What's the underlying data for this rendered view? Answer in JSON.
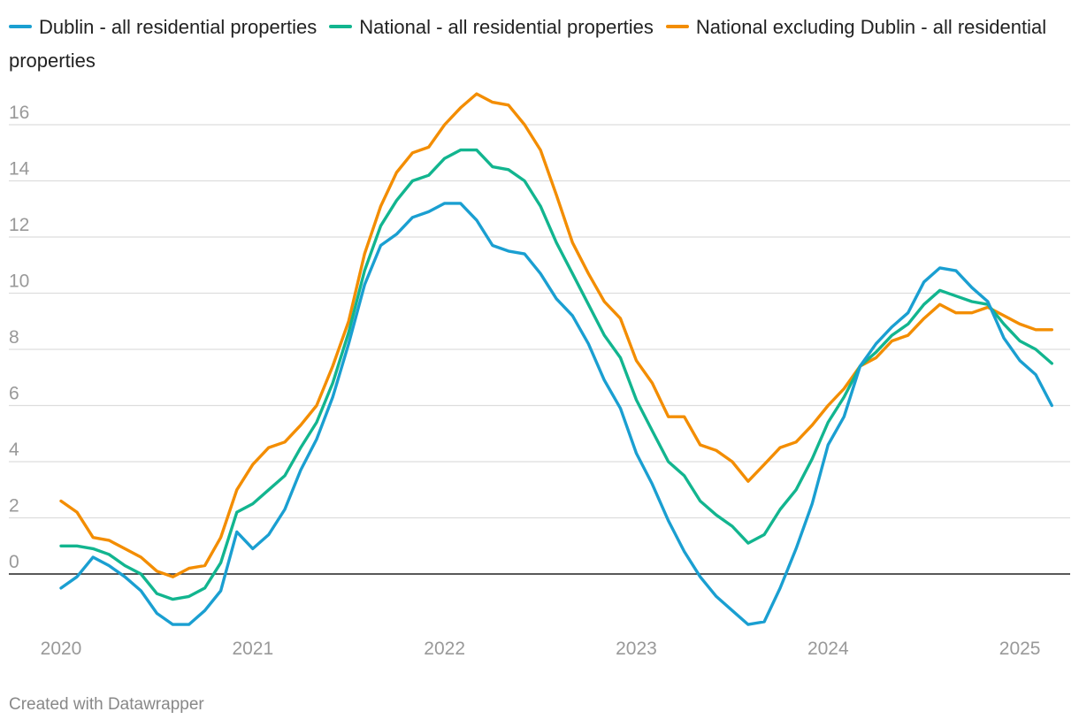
{
  "chart_data": {
    "type": "line",
    "title": "",
    "xlabel": "",
    "ylabel": "",
    "ylim": [
      -1.8,
      17.2
    ],
    "y_ticks": [
      0,
      2,
      4,
      6,
      8,
      10,
      12,
      14,
      16
    ],
    "x_ticks": [
      2020,
      2021,
      2022,
      2023,
      2024,
      2025
    ],
    "x_range": [
      2020,
      2025.17
    ],
    "grid": true,
    "legend_position": "top",
    "x": [
      2020.0,
      2020.083,
      2020.167,
      2020.25,
      2020.333,
      2020.417,
      2020.5,
      2020.583,
      2020.667,
      2020.75,
      2020.833,
      2020.917,
      2021.0,
      2021.083,
      2021.167,
      2021.25,
      2021.333,
      2021.417,
      2021.5,
      2021.583,
      2021.667,
      2021.75,
      2021.833,
      2021.917,
      2022.0,
      2022.083,
      2022.167,
      2022.25,
      2022.333,
      2022.417,
      2022.5,
      2022.583,
      2022.667,
      2022.75,
      2022.833,
      2022.917,
      2023.0,
      2023.083,
      2023.167,
      2023.25,
      2023.333,
      2023.417,
      2023.5,
      2023.583,
      2023.667,
      2023.75,
      2023.833,
      2023.917,
      2024.0,
      2024.083,
      2024.167,
      2024.25,
      2024.333,
      2024.417,
      2024.5,
      2024.583,
      2024.667,
      2024.75,
      2024.833,
      2024.917,
      2025.0,
      2025.083,
      2025.167
    ],
    "series": [
      {
        "name": "Dublin - all residential properties",
        "color": "#1a9fd1",
        "values": [
          -0.5,
          -0.1,
          0.6,
          0.3,
          -0.1,
          -0.6,
          -1.4,
          -1.8,
          -1.8,
          -1.3,
          -0.6,
          1.5,
          0.9,
          1.4,
          2.3,
          3.7,
          4.8,
          6.3,
          8.2,
          10.3,
          11.7,
          12.1,
          12.7,
          12.9,
          13.2,
          13.2,
          12.6,
          11.7,
          11.5,
          11.4,
          10.7,
          9.8,
          9.2,
          8.2,
          6.9,
          5.9,
          4.3,
          3.2,
          1.9,
          0.8,
          -0.1,
          -0.8,
          -1.3,
          -1.8,
          -1.7,
          -0.5,
          0.9,
          2.5,
          4.6,
          5.6,
          7.4,
          8.2,
          8.8,
          9.3,
          10.4,
          10.9,
          10.8,
          10.2,
          9.7,
          8.4,
          7.6,
          7.1,
          6.0
        ]
      },
      {
        "name": "National - all residential properties",
        "color": "#12b58f",
        "values": [
          1.0,
          1.0,
          0.9,
          0.7,
          0.3,
          0.0,
          -0.7,
          -0.9,
          -0.8,
          -0.5,
          0.4,
          2.2,
          2.5,
          3.0,
          3.5,
          4.5,
          5.4,
          6.8,
          8.6,
          10.8,
          12.4,
          13.3,
          14.0,
          14.2,
          14.8,
          15.1,
          15.1,
          14.5,
          14.4,
          14.0,
          13.1,
          11.8,
          10.7,
          9.6,
          8.5,
          7.7,
          6.2,
          5.1,
          4.0,
          3.5,
          2.6,
          2.1,
          1.7,
          1.1,
          1.4,
          2.3,
          3.0,
          4.1,
          5.4,
          6.3,
          7.4,
          7.9,
          8.5,
          8.9,
          9.6,
          10.1,
          9.9,
          9.7,
          9.6,
          8.9,
          8.3,
          8.0,
          7.5
        ]
      },
      {
        "name": "National excluding Dublin - all residential properties",
        "color": "#f38d00",
        "values": [
          2.6,
          2.2,
          1.3,
          1.2,
          0.9,
          0.6,
          0.1,
          -0.1,
          0.2,
          0.3,
          1.3,
          3.0,
          3.9,
          4.5,
          4.7,
          5.3,
          6.0,
          7.4,
          9.0,
          11.4,
          13.1,
          14.3,
          15.0,
          15.2,
          16.0,
          16.6,
          17.1,
          16.8,
          16.7,
          16.0,
          15.1,
          13.5,
          11.8,
          10.7,
          9.7,
          9.1,
          7.6,
          6.8,
          5.6,
          5.6,
          4.6,
          4.4,
          4.0,
          3.3,
          3.9,
          4.5,
          4.7,
          5.3,
          6.0,
          6.6,
          7.4,
          7.7,
          8.3,
          8.5,
          9.1,
          9.6,
          9.3,
          9.3,
          9.5,
          9.2,
          8.9,
          8.7,
          8.7
        ]
      }
    ]
  },
  "credit": "Created with Datawrapper"
}
